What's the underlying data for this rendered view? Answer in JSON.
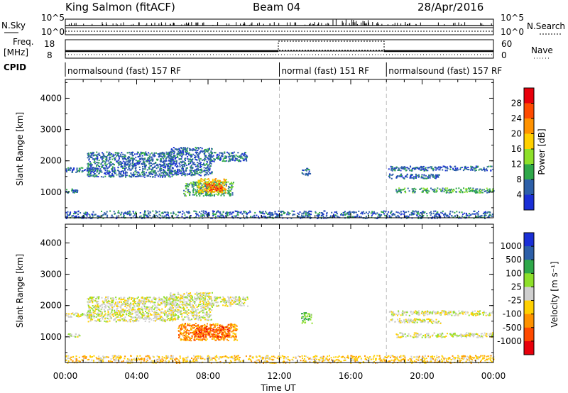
{
  "header": {
    "station": "King Salmon (fitACF)",
    "beam": "Beam 04",
    "date": "28/Apr/2016"
  },
  "top_panels": {
    "nsky_label": "N.Sky",
    "nsky_ticks": [
      "10^5",
      "10^0"
    ],
    "nsearch_label": "N.Search",
    "nsearch_ticks": [
      "10^5",
      "10^0"
    ],
    "freq_label": "Freq.",
    "freq_unit": "[MHz]",
    "freq_ticks": [
      "18",
      "8"
    ],
    "nave_label": "Nave",
    "nave_ticks": [
      "60",
      "0"
    ],
    "cpid_label": "CPID",
    "cpid_segments": [
      {
        "label": "normalsound (fast) 157 RF",
        "start_hour": 0,
        "end_hour": 12
      },
      {
        "label": "normal (fast) 151 RF",
        "start_hour": 12,
        "end_hour": 18
      },
      {
        "label": "normalsound (fast) 157 RF",
        "start_hour": 18,
        "end_hour": 24
      }
    ]
  },
  "chart_data": [
    {
      "type": "heatmap",
      "name": "power",
      "ylabel": "Slant Range [km]",
      "xlim_hours": [
        0,
        24
      ],
      "ylim": [
        180,
        4600
      ],
      "yticks": [
        1000,
        2000,
        3000,
        4000
      ],
      "colorbar_label": "Power [dB]",
      "colorbar_ticks": [
        "28",
        "24",
        "20",
        "16",
        "12",
        "8",
        "4"
      ],
      "colorbar_colors": [
        "#e8000b",
        "#ff4a00",
        "#ff9200",
        "#ffd000",
        "#8ee02a",
        "#2fa84a",
        "#2d5fa8",
        "#1a2fd6"
      ],
      "echo_regions": [
        {
          "t0": 0.0,
          "t1": 0.8,
          "r0": 1000,
          "r1": 1120,
          "level": 1
        },
        {
          "t0": 0.0,
          "t1": 1.6,
          "r0": 1650,
          "r1": 1800,
          "level": 1
        },
        {
          "t0": 1.2,
          "t1": 6.0,
          "r0": 1500,
          "r1": 2300,
          "level": 1
        },
        {
          "t0": 5.8,
          "t1": 8.2,
          "r0": 1550,
          "r1": 2450,
          "level": 1
        },
        {
          "t0": 8.0,
          "t1": 10.2,
          "r0": 2000,
          "r1": 2300,
          "level": 1
        },
        {
          "t0": 6.6,
          "t1": 9.4,
          "r0": 900,
          "r1": 1350,
          "level": 2
        },
        {
          "t0": 7.4,
          "t1": 9.0,
          "r0": 1000,
          "r1": 1450,
          "level": 4
        },
        {
          "t0": 7.8,
          "t1": 8.8,
          "r0": 1050,
          "r1": 1300,
          "level": 6
        },
        {
          "t0": 13.2,
          "t1": 13.7,
          "r0": 1550,
          "r1": 1780,
          "level": 1
        },
        {
          "t0": 18.1,
          "t1": 24.0,
          "r0": 1700,
          "r1": 1850,
          "level": 1
        },
        {
          "t0": 18.1,
          "t1": 21.0,
          "r0": 1450,
          "r1": 1600,
          "level": 1
        },
        {
          "t0": 18.5,
          "t1": 24.0,
          "r0": 1000,
          "r1": 1150,
          "level": 2
        },
        {
          "t0": 0.0,
          "t1": 24.0,
          "r0": 180,
          "r1": 420,
          "level": 1
        }
      ]
    },
    {
      "type": "heatmap",
      "name": "velocity",
      "ylabel": "Slant Range [km]",
      "xlabel": "Time UT",
      "xlim_hours": [
        0,
        24
      ],
      "ylim": [
        180,
        4600
      ],
      "yticks": [
        1000,
        2000,
        3000,
        4000
      ],
      "xticks": [
        "00:00",
        "04:00",
        "08:00",
        "12:00",
        "16:00",
        "20:00",
        "00:00"
      ],
      "colorbar_label": "Velocity [m s⁻¹]",
      "colorbar_ticks": [
        "1000",
        "500",
        "100",
        "25",
        "-25",
        "-100",
        "-500",
        "-1000"
      ],
      "colorbar_colors": [
        "#1a2fd6",
        "#2d5fa8",
        "#2fa84a",
        "#8ee02a",
        "#cfcfcf",
        "#ffd000",
        "#ff9200",
        "#ff4a00",
        "#e8000b"
      ],
      "echo_regions": [
        {
          "t0": 0.0,
          "t1": 0.8,
          "r0": 1000,
          "r1": 1120,
          "level": 4
        },
        {
          "t0": 0.0,
          "t1": 1.6,
          "r0": 1650,
          "r1": 1800,
          "level": 4
        },
        {
          "t0": 1.2,
          "t1": 6.0,
          "r0": 1500,
          "r1": 2300,
          "level": 4
        },
        {
          "t0": 5.8,
          "t1": 8.2,
          "r0": 1550,
          "r1": 2450,
          "level": 4
        },
        {
          "t0": 8.0,
          "t1": 10.2,
          "r0": 2000,
          "r1": 2300,
          "level": 4
        },
        {
          "t0": 6.3,
          "t1": 9.6,
          "r0": 900,
          "r1": 1450,
          "level": 6
        },
        {
          "t0": 7.2,
          "t1": 9.2,
          "r0": 1000,
          "r1": 1350,
          "level": 7
        },
        {
          "t0": 13.2,
          "t1": 13.8,
          "r0": 1450,
          "r1": 1800,
          "level": 3
        },
        {
          "t0": 18.1,
          "t1": 24.0,
          "r0": 1700,
          "r1": 1850,
          "level": 4
        },
        {
          "t0": 18.1,
          "t1": 21.0,
          "r0": 1450,
          "r1": 1600,
          "level": 4
        },
        {
          "t0": 18.5,
          "t1": 24.0,
          "r0": 1000,
          "r1": 1150,
          "level": 4
        },
        {
          "t0": 0.0,
          "t1": 24.0,
          "r0": 180,
          "r1": 420,
          "level": 5
        }
      ]
    }
  ]
}
